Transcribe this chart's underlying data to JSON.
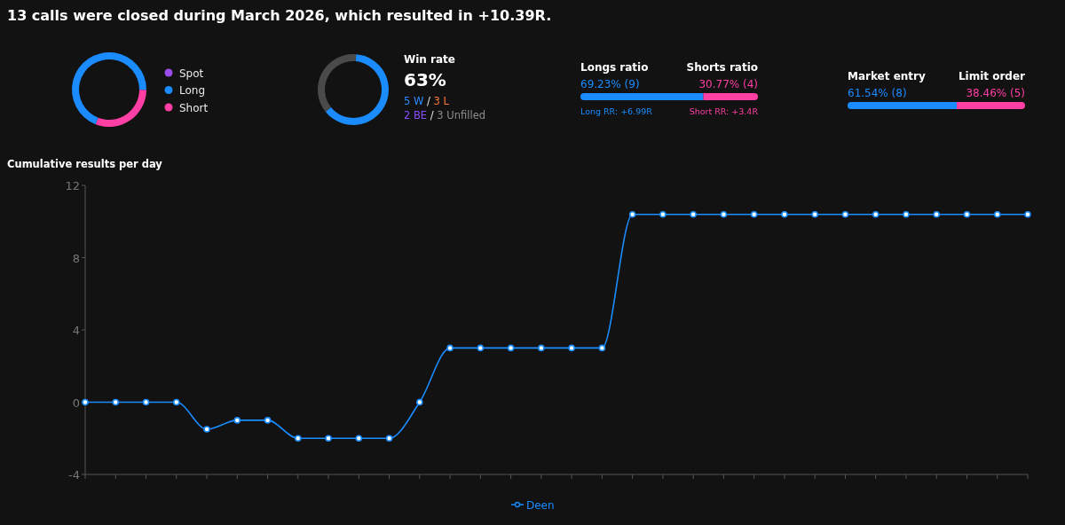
{
  "chart_data": [
    {
      "type": "donut",
      "title": "13 calls were closed during March 2026, which resulted in +10.39R.",
      "categories": [
        "Spot",
        "Long",
        "Short"
      ],
      "values": [
        0,
        69.23,
        30.77
      ],
      "colors": [
        "#9b4dea",
        "#1a8cff",
        "#ff3fa4"
      ],
      "legend": "right"
    },
    {
      "type": "donut",
      "title": "Win rate",
      "subtitle": "63%",
      "categories": [
        null,
        null
      ],
      "values": [
        63,
        37
      ],
      "colors": [
        "#1a8cff",
        "#4a4a4a"
      ],
      "annotations": [
        "5 W / 3 L",
        "2 BE / 3 Unfilled"
      ]
    },
    {
      "type": "bar",
      "orientation": "horizontal",
      "stacked": true,
      "categories": [
        null
      ],
      "series": [
        {
          "name": "Longs ratio",
          "color": "#1a8cff",
          "values": [
            69.23
          ],
          "value_labels": [
            "69.23% (9)"
          ]
        },
        {
          "name": "Shorts ratio",
          "color": "#ff3fa4",
          "values": [
            30.77
          ],
          "value_labels": [
            "30.77% (4)"
          ]
        }
      ],
      "annotations": [
        "Long RR: +6.99R",
        "Short RR: +3.4R"
      ]
    },
    {
      "type": "bar",
      "orientation": "horizontal",
      "stacked": true,
      "categories": [
        null
      ],
      "series": [
        {
          "name": "Market entry",
          "color": "#1a8cff",
          "values": [
            61.54
          ],
          "value_labels": [
            "61.54% (8)"
          ]
        },
        {
          "name": "Limit order",
          "color": "#ff3fa4",
          "values": [
            38.46
          ],
          "value_labels": [
            "38.46% (5)"
          ]
        }
      ]
    },
    {
      "type": "line",
      "title": "Cumulative results per day",
      "categories": [
        null,
        null,
        null,
        null,
        null,
        null,
        null,
        null,
        null,
        null,
        null,
        null,
        null,
        null,
        null,
        null,
        null,
        null,
        null,
        null,
        null,
        null,
        null,
        null,
        null,
        null,
        null,
        null,
        null,
        null,
        null,
        null
      ],
      "series": [
        {
          "name": "Deen",
          "color": "#1a8cff",
          "values": [
            0,
            0,
            0,
            0,
            -1.5,
            -1,
            -1,
            -2,
            -2,
            -2,
            -2,
            0,
            3,
            3,
            3,
            3,
            3,
            3,
            10.39,
            10.39,
            10.39,
            10.39,
            10.39,
            10.39,
            10.39,
            10.39,
            10.39,
            10.39,
            10.39,
            10.39,
            10.39,
            10.39
          ]
        }
      ],
      "ylim": [
        -4,
        12
      ],
      "yticks": [
        -4,
        0,
        4,
        8,
        12
      ],
      "marker": "circle",
      "legend": "bottom",
      "grid": false
    }
  ]
}
